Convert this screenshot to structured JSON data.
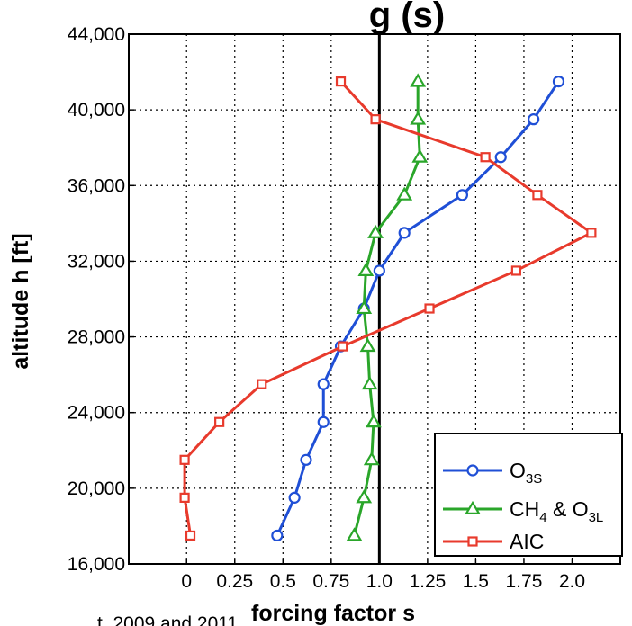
{
  "chart_data": {
    "type": "line",
    "title_fragment": "g        (s)",
    "xlabel": "forcing factor  s",
    "ylabel": "altitude  h  [ft]",
    "source_fragment": "t. 2009 and 2011",
    "xlim": [
      -0.3,
      2.25
    ],
    "ylim": [
      16000,
      44000
    ],
    "xticks": [
      0,
      0.25,
      0.5,
      0.75,
      1.0,
      1.25,
      1.5,
      1.75,
      2.0
    ],
    "xtick_labels": [
      "0",
      "0.25",
      "0.5",
      "0.75",
      "1.0",
      "1.25",
      "1.5",
      "1.75",
      "2.0"
    ],
    "yticks": [
      16000,
      20000,
      24000,
      28000,
      32000,
      36000,
      40000,
      44000
    ],
    "ytick_labels": [
      "16,000",
      "20,000",
      "24,000",
      "28,000",
      "32,000",
      "36,000",
      "40,000",
      "44,000"
    ],
    "grid": true,
    "legend_position": "bottom-right",
    "reference_line_x": 1.0,
    "series": [
      {
        "name": "O",
        "name_sub": "3S",
        "marker": "circle",
        "color": "#1f4fd6",
        "points": [
          {
            "x": 0.47,
            "y": 17500
          },
          {
            "x": 0.56,
            "y": 19500
          },
          {
            "x": 0.62,
            "y": 21500
          },
          {
            "x": 0.71,
            "y": 23500
          },
          {
            "x": 0.71,
            "y": 25500
          },
          {
            "x": 0.8,
            "y": 27500
          },
          {
            "x": 0.92,
            "y": 29500
          },
          {
            "x": 1.0,
            "y": 31500
          },
          {
            "x": 1.13,
            "y": 33500
          },
          {
            "x": 1.43,
            "y": 35500
          },
          {
            "x": 1.63,
            "y": 37500
          },
          {
            "x": 1.8,
            "y": 39500
          },
          {
            "x": 1.93,
            "y": 41500
          }
        ]
      },
      {
        "name": "CH",
        "name_sub": "4",
        "name_mid": " & O",
        "name_sub2": "3L",
        "marker": "triangle",
        "color": "#2aa62a",
        "points": [
          {
            "x": 0.87,
            "y": 17500
          },
          {
            "x": 0.92,
            "y": 19500
          },
          {
            "x": 0.96,
            "y": 21500
          },
          {
            "x": 0.97,
            "y": 23500
          },
          {
            "x": 0.95,
            "y": 25500
          },
          {
            "x": 0.94,
            "y": 27500
          },
          {
            "x": 0.92,
            "y": 29500
          },
          {
            "x": 0.93,
            "y": 31500
          },
          {
            "x": 0.98,
            "y": 33500
          },
          {
            "x": 1.13,
            "y": 35500
          },
          {
            "x": 1.21,
            "y": 37500
          },
          {
            "x": 1.2,
            "y": 39500
          },
          {
            "x": 1.2,
            "y": 41500
          }
        ]
      },
      {
        "name": "AIC",
        "marker": "square",
        "color": "#e83a2c",
        "points": [
          {
            "x": 0.02,
            "y": 17500
          },
          {
            "x": -0.01,
            "y": 19500
          },
          {
            "x": -0.01,
            "y": 21500
          },
          {
            "x": 0.17,
            "y": 23500
          },
          {
            "x": 0.39,
            "y": 25500
          },
          {
            "x": 0.81,
            "y": 27500
          },
          {
            "x": 1.26,
            "y": 29500
          },
          {
            "x": 1.71,
            "y": 31500
          },
          {
            "x": 2.1,
            "y": 33500
          },
          {
            "x": 1.82,
            "y": 35500
          },
          {
            "x": 1.55,
            "y": 37500
          },
          {
            "x": 0.98,
            "y": 39500
          },
          {
            "x": 0.8,
            "y": 41500
          }
        ]
      }
    ]
  }
}
